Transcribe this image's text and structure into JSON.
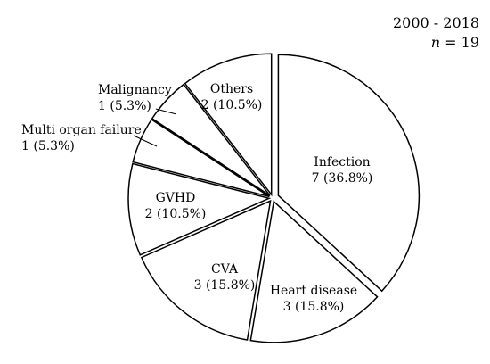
{
  "corner": {
    "period": "2000 - 2018",
    "n_symbol": "n",
    "n_equals": " = 19"
  },
  "chart_data": {
    "type": "pie",
    "title": "",
    "slices": [
      {
        "label": "Infection",
        "value": 7,
        "text": "7 (36.8%)"
      },
      {
        "label": "Heart disease",
        "value": 3,
        "text": "3 (15.8%)"
      },
      {
        "label": "CVA",
        "value": 3,
        "text": "3 (15.8%)"
      },
      {
        "label": "GVHD",
        "value": 2,
        "text": "2 (10.5%)"
      },
      {
        "label": "Multi organ failure",
        "value": 1,
        "text": "1 (5.3%)"
      },
      {
        "label": "Malignancy",
        "value": 1,
        "text": "1 (5.3%)"
      },
      {
        "label": "Others",
        "value": 2,
        "text": "2 (10.5%)"
      }
    ],
    "exploded": true,
    "fill_color": "#ffffff",
    "stroke_color": "#000000",
    "start_angle_deg": 90,
    "direction": "clockwise"
  }
}
